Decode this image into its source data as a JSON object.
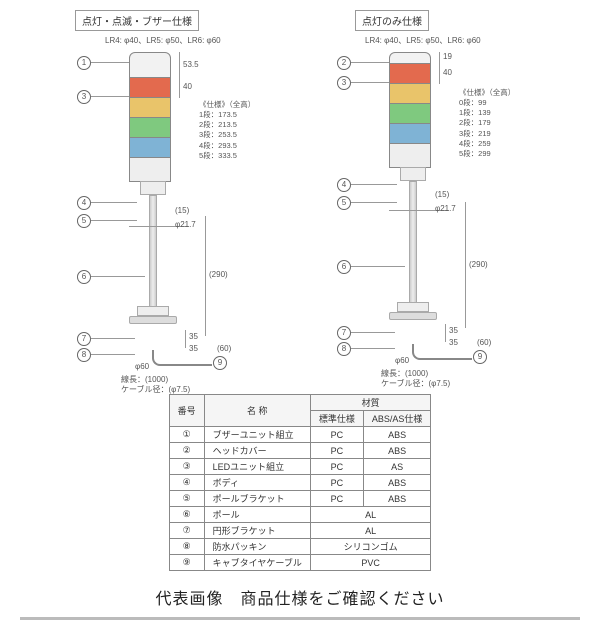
{
  "diagram_left": {
    "title": "点灯・点滅・ブザー仕様",
    "subhead": "LR4: φ40、LR5: φ50、LR6: φ60",
    "top_dim1": "53.5",
    "top_dim2": "40",
    "spec_title": "《仕様》（全高）",
    "spec_rows": [
      "1段：173.5",
      "2段：213.5",
      "3段：253.5",
      "4段：293.5",
      "5段：333.5"
    ],
    "phi_pole": "φ21.7",
    "pole_gap": "(15)",
    "pole_h": "(290)",
    "base_dim": "35",
    "base_h_dim": "35",
    "base_w": "(60)",
    "phi_base": "φ60",
    "cable_note1": "線長：(1000)",
    "cable_note2": "ケーブル径：(φ7.5)",
    "segments": [
      {
        "h": 26,
        "color": "#f2f2f2"
      },
      {
        "h": 20,
        "color": "#e36a4e"
      },
      {
        "h": 20,
        "color": "#e9c46a"
      },
      {
        "h": 20,
        "color": "#7fc97f"
      },
      {
        "h": 20,
        "color": "#7fb3d5"
      },
      {
        "h": 24,
        "color": "#eeeeee"
      }
    ]
  },
  "diagram_right": {
    "title": "点灯のみ仕様",
    "subhead": "LR4: φ40、LR5: φ50、LR6: φ60",
    "top_dim1": "19",
    "top_dim2": "40",
    "spec_title": "《仕様》（全高）",
    "spec_rows": [
      "0段：99",
      "1段：139",
      "2段：179",
      "3段：219",
      "4段：259",
      "5段：299"
    ],
    "phi_pole": "φ21.7",
    "pole_gap": "(15)",
    "pole_h": "(290)",
    "base_dim": "35",
    "base_h_dim": "35",
    "base_w": "(60)",
    "phi_base": "φ60",
    "cable_note1": "線長：(1000)",
    "cable_note2": "ケーブル径：(φ7.5)",
    "segments": [
      {
        "h": 12,
        "color": "#f2f2f2"
      },
      {
        "h": 20,
        "color": "#e36a4e"
      },
      {
        "h": 20,
        "color": "#e9c46a"
      },
      {
        "h": 20,
        "color": "#7fc97f"
      },
      {
        "h": 20,
        "color": "#7fb3d5"
      },
      {
        "h": 24,
        "color": "#eeeeee"
      }
    ]
  },
  "callouts": [
    "1",
    "2",
    "3",
    "4",
    "5",
    "6",
    "7",
    "8",
    "9"
  ],
  "table": {
    "head": [
      "番号",
      "名 称",
      "標準仕様",
      "ABS/AS仕様"
    ],
    "group": "材質",
    "rows": [
      [
        "①",
        "ブザーユニット組立",
        "PC",
        "ABS"
      ],
      [
        "②",
        "ヘッドカバー",
        "PC",
        "ABS"
      ],
      [
        "③",
        "LEDユニット組立",
        "PC",
        "AS"
      ],
      [
        "④",
        "ボディ",
        "PC",
        "ABS"
      ],
      [
        "⑤",
        "ポールブラケット",
        "PC",
        "ABS"
      ],
      [
        "⑥",
        "ポール",
        "AL",
        "AL"
      ],
      [
        "⑦",
        "円形ブラケット",
        "AL",
        "AL"
      ],
      [
        "⑧",
        "防水パッキン",
        "シリコンゴム",
        "シリコンゴム"
      ],
      [
        "⑨",
        "キャブタイヤケーブル",
        "PVC",
        "PVC"
      ]
    ]
  },
  "footer": "代表画像　商品仕様をご確認ください"
}
